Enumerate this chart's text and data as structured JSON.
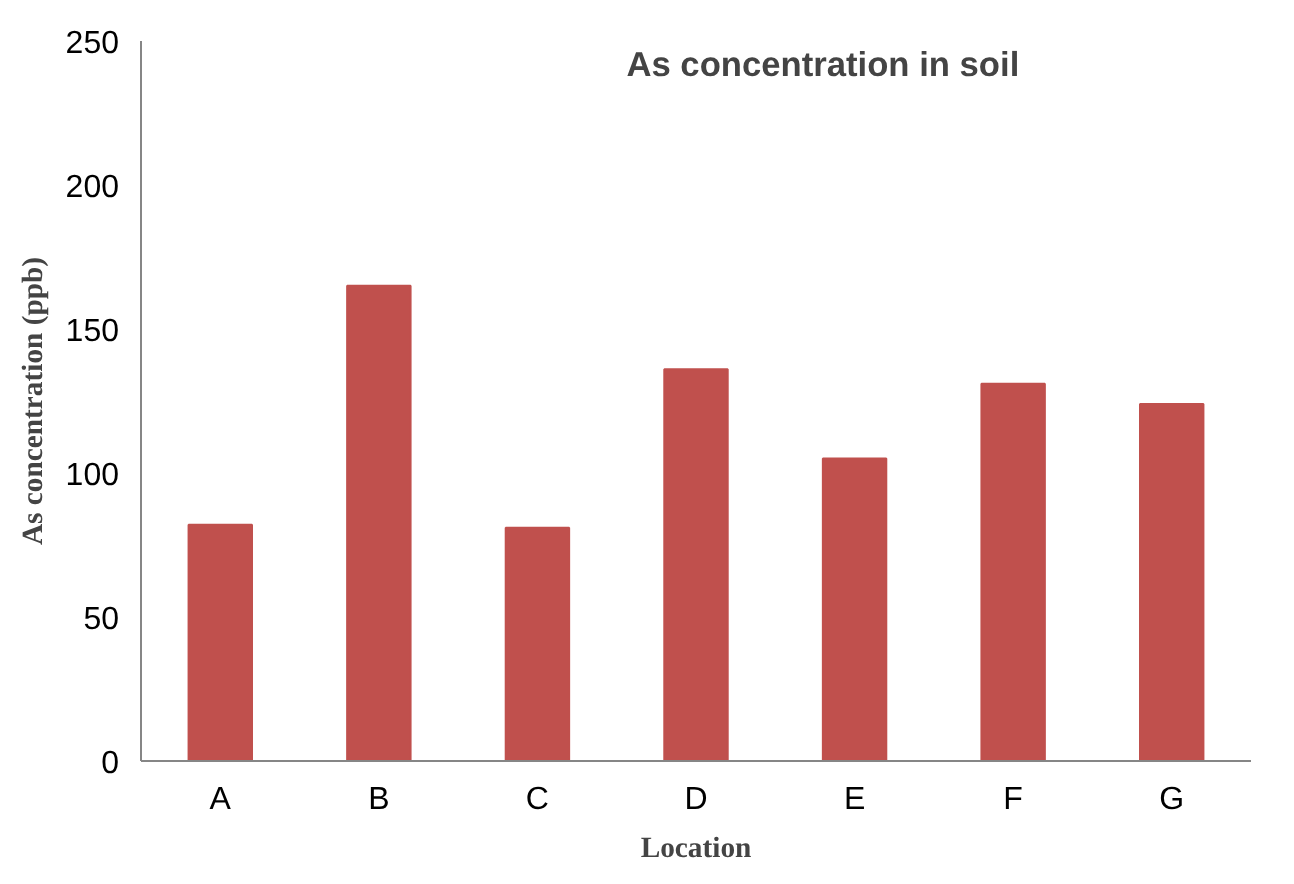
{
  "chart_data": {
    "type": "bar",
    "title": "As concentration in soil",
    "xlabel": "Location",
    "ylabel": "As concentration (ppb)",
    "categories": [
      "A",
      "B",
      "C",
      "D",
      "E",
      "F",
      "G"
    ],
    "values": [
      82,
      165,
      81,
      136,
      105,
      131,
      124
    ],
    "color": "#c0504d",
    "ylim": [
      0,
      250
    ],
    "yticks": [
      0,
      50,
      100,
      150,
      200,
      250
    ],
    "grid": false
  }
}
